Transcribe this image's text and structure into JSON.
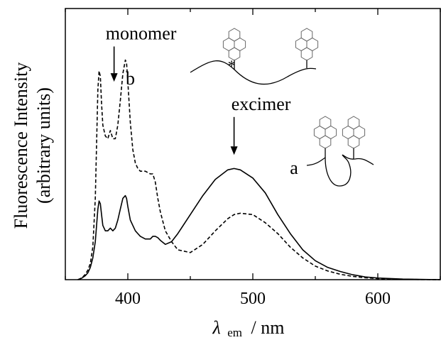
{
  "chart_data": {
    "type": "line",
    "xlabel": {
      "symbol": "λ",
      "subscript": "em",
      "unit": "/ nm"
    },
    "ylabel": [
      "Fluorescence Intensity",
      "(arbitrary units)"
    ],
    "xlim": [
      350,
      650
    ],
    "ylim": [
      0,
      1.0
    ],
    "xticks": [
      400,
      500,
      600
    ],
    "grid": false,
    "legend": "none",
    "series": [
      {
        "label": "a",
        "style": "solid",
        "color": "#000000",
        "x": [
          360,
          362,
          364,
          366,
          368,
          370,
          372,
          374,
          375,
          376,
          377,
          378,
          379,
          380,
          382,
          384,
          386,
          388,
          390,
          392,
          394,
          396,
          398,
          399,
          400,
          402,
          404,
          406,
          408,
          410,
          414,
          418,
          420,
          422,
          424,
          426,
          430,
          435,
          440,
          450,
          460,
          470,
          480,
          485,
          490,
          500,
          510,
          520,
          530,
          540,
          550,
          560,
          570,
          580,
          590,
          600,
          620,
          650
        ],
        "y": [
          0.0,
          0.003,
          0.008,
          0.015,
          0.025,
          0.045,
          0.08,
          0.14,
          0.2,
          0.26,
          0.29,
          0.28,
          0.24,
          0.2,
          0.18,
          0.18,
          0.19,
          0.18,
          0.19,
          0.22,
          0.26,
          0.3,
          0.31,
          0.3,
          0.27,
          0.22,
          0.2,
          0.18,
          0.17,
          0.16,
          0.15,
          0.15,
          0.16,
          0.16,
          0.155,
          0.145,
          0.13,
          0.14,
          0.17,
          0.24,
          0.31,
          0.37,
          0.405,
          0.41,
          0.405,
          0.375,
          0.32,
          0.24,
          0.17,
          0.11,
          0.07,
          0.045,
          0.03,
          0.018,
          0.01,
          0.006,
          0.002,
          0.0
        ]
      },
      {
        "label": "b",
        "style": "dashed",
        "color": "#000000",
        "x": [
          360,
          362,
          364,
          366,
          368,
          370,
          372,
          374,
          375,
          376,
          377,
          378,
          379,
          380,
          382,
          384,
          386,
          388,
          390,
          392,
          394,
          396,
          398,
          399,
          400,
          402,
          404,
          406,
          408,
          410,
          414,
          418,
          420,
          422,
          424,
          426,
          430,
          435,
          440,
          450,
          460,
          470,
          480,
          485,
          490,
          500,
          510,
          520,
          530,
          540,
          550,
          560,
          570,
          580,
          590,
          600,
          620,
          650
        ],
        "y": [
          0.0,
          0.004,
          0.01,
          0.02,
          0.035,
          0.06,
          0.12,
          0.3,
          0.5,
          0.7,
          0.77,
          0.75,
          0.65,
          0.57,
          0.53,
          0.52,
          0.55,
          0.52,
          0.52,
          0.57,
          0.66,
          0.76,
          0.81,
          0.8,
          0.73,
          0.58,
          0.48,
          0.43,
          0.41,
          0.4,
          0.4,
          0.39,
          0.39,
          0.36,
          0.3,
          0.25,
          0.18,
          0.14,
          0.11,
          0.1,
          0.13,
          0.18,
          0.225,
          0.24,
          0.245,
          0.24,
          0.21,
          0.17,
          0.12,
          0.08,
          0.05,
          0.032,
          0.02,
          0.012,
          0.007,
          0.004,
          0.001,
          0.0
        ]
      }
    ],
    "annotations": [
      {
        "text": "monomer",
        "arrow_x": 389,
        "arrow_from_y": 0.86,
        "arrow_to_y": 0.73
      },
      {
        "text": "excimer",
        "arrow_x": 485,
        "arrow_from_y": 0.6,
        "arrow_to_y": 0.46
      },
      {
        "text": "b",
        "at_x": 402,
        "at_y": 0.72
      },
      {
        "text": "a",
        "at_x": 533,
        "at_y": 0.39
      },
      {
        "text": "*",
        "at_x": 483,
        "at_y": 0.77
      }
    ]
  }
}
